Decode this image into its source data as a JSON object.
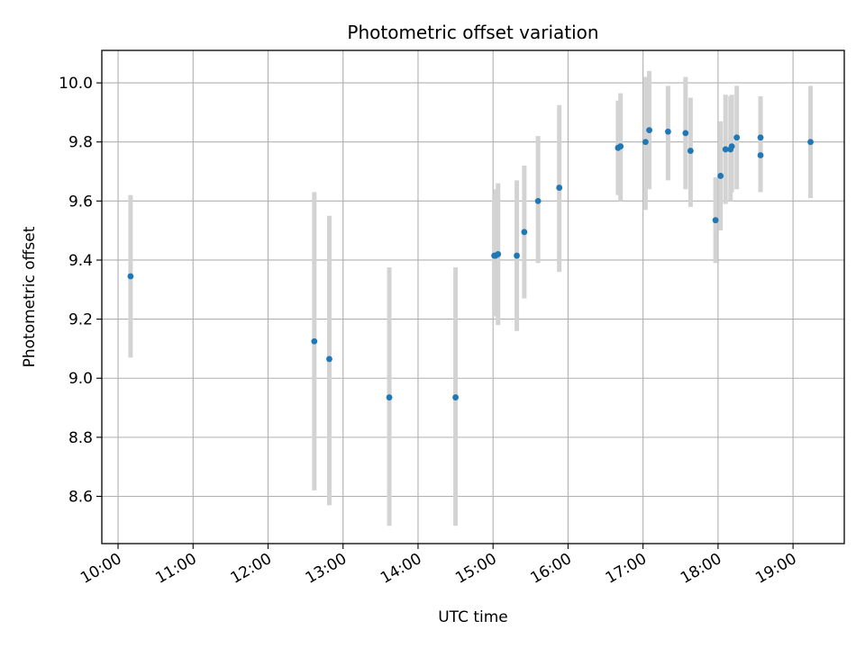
{
  "chart_data": {
    "type": "scatter",
    "title": "Photometric offset variation",
    "xlabel": "UTC time",
    "ylabel": "Photometric offset",
    "x_ticks": [
      "10:00",
      "11:00",
      "12:00",
      "13:00",
      "14:00",
      "15:00",
      "16:00",
      "17:00",
      "18:00",
      "19:00"
    ],
    "y_ticks": [
      "8.6",
      "8.8",
      "9.0",
      "9.2",
      "9.4",
      "9.6",
      "9.8",
      "10.0"
    ],
    "xlim": [
      "09:47",
      "19:41"
    ],
    "ylim": [
      8.44,
      10.11
    ],
    "grid": true,
    "colors": {
      "points": "#1f77b4",
      "errorbars": "#d3d3d3",
      "grid": "#b0b0b0"
    },
    "series": [
      {
        "x": [
          "10:10",
          "12:37",
          "12:49",
          "13:37",
          "14:30",
          "15:01",
          "15:02",
          "15:04",
          "15:19",
          "15:25",
          "15:36",
          "15:53",
          "16:40",
          "16:42",
          "17:02",
          "17:05",
          "17:20",
          "17:34",
          "17:38",
          "17:58",
          "18:02",
          "18:06",
          "18:10",
          "18:11",
          "18:15",
          "18:34",
          "18:34",
          "19:14"
        ],
        "y": [
          9.345,
          9.125,
          9.065,
          8.935,
          8.935,
          9.415,
          9.415,
          9.42,
          9.415,
          9.495,
          9.6,
          9.645,
          9.78,
          9.785,
          9.8,
          9.84,
          9.835,
          9.83,
          9.77,
          9.535,
          9.685,
          9.775,
          9.775,
          9.785,
          9.815,
          9.815,
          9.755,
          9.8
        ],
        "yerr_low": [
          9.07,
          8.62,
          8.57,
          8.5,
          8.5,
          9.21,
          9.22,
          9.18,
          9.16,
          9.27,
          9.39,
          9.36,
          9.62,
          9.6,
          9.57,
          9.64,
          9.67,
          9.64,
          9.58,
          9.39,
          9.5,
          9.59,
          9.6,
          9.63,
          9.64,
          9.63,
          9.67,
          9.61
        ],
        "yerr_high": [
          9.62,
          9.63,
          9.55,
          9.375,
          9.375,
          9.62,
          9.64,
          9.66,
          9.67,
          9.72,
          9.82,
          9.925,
          9.94,
          9.965,
          10.02,
          10.04,
          9.99,
          10.02,
          9.95,
          9.68,
          9.87,
          9.96,
          9.955,
          9.96,
          9.99,
          9.95,
          9.955,
          9.99
        ]
      }
    ]
  }
}
